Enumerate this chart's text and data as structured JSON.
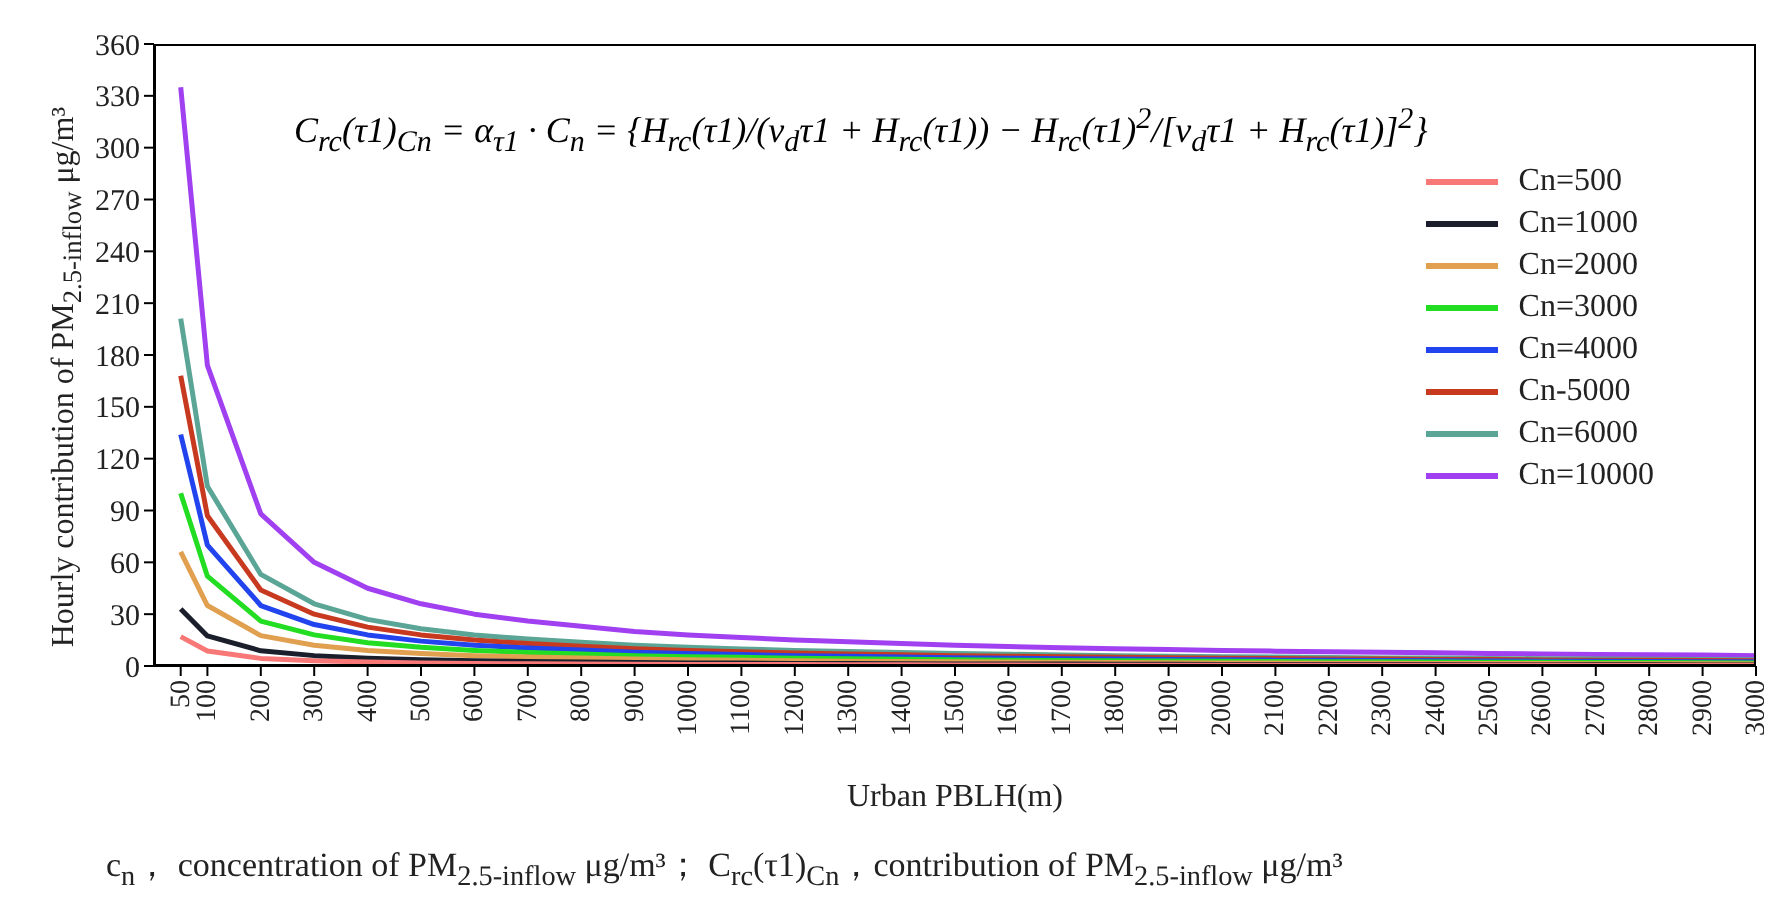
{
  "chart_data": {
    "type": "line",
    "xlabel": "Urban PBLH(m)",
    "ylabel": "Hourly contribution of PM$_{2.5-inflow}$ μg/m³",
    "x": [
      50,
      100,
      200,
      300,
      400,
      500,
      600,
      700,
      800,
      900,
      1000,
      1100,
      1200,
      1300,
      1400,
      1500,
      1600,
      1700,
      1800,
      1900,
      2000,
      2100,
      2200,
      2300,
      2400,
      2500,
      2600,
      2700,
      2800,
      2900,
      3000
    ],
    "xlim": [
      0,
      3000
    ],
    "xticks": [
      50,
      100,
      200,
      300,
      400,
      500,
      600,
      700,
      800,
      900,
      1000,
      1100,
      1200,
      1300,
      1400,
      1500,
      1600,
      1700,
      1800,
      1900,
      2000,
      2100,
      2200,
      2300,
      2400,
      2500,
      2600,
      2700,
      2800,
      2900,
      3000
    ],
    "ylim": [
      0,
      360
    ],
    "yticks": [
      0,
      30,
      60,
      90,
      120,
      150,
      180,
      210,
      240,
      270,
      300,
      330,
      360
    ],
    "grid": false,
    "legend": "top right",
    "series": [
      {
        "name": "Cn=500",
        "color": "#f87878",
        "values": [
          17,
          8.7,
          4.4,
          3,
          2.3,
          1.8,
          1.5,
          1.3,
          1.2,
          1,
          0.9,
          0.8,
          0.8,
          0.7,
          0.7,
          0.6,
          0.6,
          0.5,
          0.5,
          0.5,
          0.5,
          0.4,
          0.4,
          0.4,
          0.4,
          0.4,
          0.4,
          0.3,
          0.3,
          0.3,
          0.3
        ]
      },
      {
        "name": "Cn=1000",
        "color": "#1a1f2b",
        "values": [
          33,
          17.4,
          8.8,
          6,
          4.5,
          3.6,
          3,
          2.6,
          2.3,
          2,
          1.8,
          1.7,
          1.5,
          1.4,
          1.3,
          1.2,
          1.1,
          1.1,
          1,
          1,
          0.9,
          0.9,
          0.8,
          0.8,
          0.8,
          0.7,
          0.7,
          0.7,
          0.7,
          0.6,
          0.6
        ]
      },
      {
        "name": "Cn=2000",
        "color": "#e0a050",
        "values": [
          66,
          35,
          17.6,
          12,
          9,
          7.2,
          6,
          5.2,
          4.6,
          4,
          3.6,
          3.3,
          3,
          2.8,
          2.6,
          2.4,
          2.3,
          2.1,
          2,
          1.9,
          1.8,
          1.7,
          1.6,
          1.6,
          1.5,
          1.5,
          1.4,
          1.3,
          1.3,
          1.3,
          1.2
        ]
      },
      {
        "name": "Cn=3000",
        "color": "#22dd22",
        "values": [
          100,
          52,
          26,
          18,
          13.5,
          10.8,
          9,
          7.8,
          6.9,
          6,
          5.4,
          5,
          4.5,
          4.2,
          3.9,
          3.6,
          3.4,
          3.2,
          3,
          2.9,
          2.7,
          2.6,
          2.5,
          2.4,
          2.3,
          2.2,
          2.1,
          2,
          2,
          1.9,
          1.8
        ]
      },
      {
        "name": "Cn=4000",
        "color": "#2244ee",
        "values": [
          134,
          70,
          35,
          24,
          18,
          14.4,
          12,
          10.4,
          9.2,
          8,
          7.2,
          6.6,
          6,
          5.6,
          5.2,
          4.8,
          4.5,
          4.2,
          4,
          3.8,
          3.6,
          3.4,
          3.3,
          3.2,
          3,
          2.9,
          2.8,
          2.7,
          2.6,
          2.5,
          2.4
        ]
      },
      {
        "name": "Cn-5000",
        "color": "#c83a20",
        "values": [
          168,
          87,
          44,
          30,
          22.5,
          18,
          15,
          13,
          11.5,
          10,
          9,
          8.3,
          7.5,
          7,
          6.5,
          6,
          5.7,
          5.3,
          5,
          4.8,
          4.5,
          4.3,
          4.1,
          4,
          3.8,
          3.7,
          3.5,
          3.4,
          3.3,
          3.2,
          3
        ]
      },
      {
        "name": "Cn=6000",
        "color": "#5aa596",
        "values": [
          201,
          104,
          53,
          36,
          27,
          21.6,
          18,
          15.6,
          13.8,
          12,
          10.8,
          9.9,
          9,
          8.4,
          7.8,
          7.2,
          6.8,
          6.4,
          6,
          5.7,
          5.4,
          5.2,
          4.9,
          4.7,
          4.6,
          4.4,
          4.2,
          4,
          3.9,
          3.8,
          3.6
        ]
      },
      {
        "name": "Cn=10000",
        "color": "#a040f0",
        "values": [
          335,
          174,
          88,
          60,
          45,
          36,
          30,
          26,
          23,
          20,
          18,
          16.5,
          15,
          14,
          13,
          12,
          11.3,
          10.6,
          10,
          9.5,
          9,
          8.6,
          8.2,
          7.9,
          7.6,
          7.3,
          7,
          6.7,
          6.5,
          6.3,
          6
        ]
      }
    ],
    "annotations": [
      "C$_{rc}$(τ1)$_{Cn}$ = α$_{τ1}$ · C$_{n}$ = {H$_{rc}$(τ1)/(v$_{d}$τ1 + H$_{rc}$(τ1)) − H$_{rc}$(τ1)$^{2}$/[v$_{d}$τ1 + H$_{rc}$(τ1)]$^{2}$}",
      "c$_{n}$， concentration of PM$_{2.5-inflow}$ μg/m³；  C$_{rc}$(τ1)$_{Cn}$，contribution of PM$_{2.5-inflow}$ μg/m³"
    ]
  }
}
